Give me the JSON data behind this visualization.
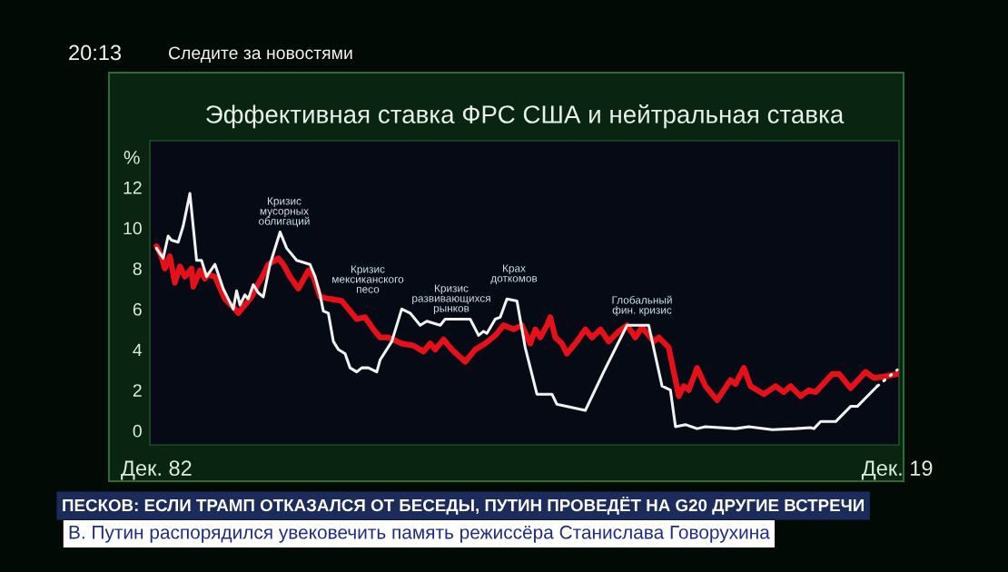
{
  "chart_data": {
    "type": "line",
    "title": "Эффективная ставка ФРС США и нейтральная ставка",
    "ylabel": "%",
    "xlim": [
      "1982-08",
      "2020-01"
    ],
    "xticks": [
      {
        "value": "1982-12",
        "label": "Дек. 82"
      },
      {
        "value": "2019-12",
        "label": "Дек. 19"
      }
    ],
    "ylim": [
      -0.7,
      14.3
    ],
    "yticks": [
      0,
      2,
      4,
      6,
      8,
      10,
      12
    ],
    "series": [
      {
        "color": "#e5101a",
        "x": [
          "1982-12",
          "1983-03",
          "1983-05",
          "1983-08",
          "1983-11",
          "1984-02",
          "1984-05",
          "1984-09",
          "1984-10",
          "1985-02",
          "1985-05",
          "1985-07",
          "1985-11",
          "1986-05",
          "1986-10",
          "1987-01",
          "1987-05",
          "1987-09",
          "1987-12",
          "1988-04",
          "1988-07",
          "1989-01",
          "1989-04",
          "1989-08",
          "1990-01",
          "1990-07",
          "1990-10",
          "1991-02",
          "1991-08",
          "1992-03",
          "1992-08",
          "1992-12",
          "1993-05",
          "1993-10",
          "1994-02",
          "1994-07",
          "1995-03",
          "1995-10",
          "1996-04",
          "1996-08",
          "1996-11",
          "1997-04",
          "1997-09",
          "1998-05",
          "1998-11",
          "1999-05",
          "1999-11",
          "2000-04",
          "2000-10",
          "2001-03",
          "2001-08",
          "2001-11",
          "2002-02",
          "2002-06",
          "2002-08",
          "2002-11",
          "2003-03",
          "2003-06",
          "2003-12",
          "2004-05",
          "2004-09",
          "2005-02",
          "2005-07",
          "2006-01",
          "2006-06",
          "2006-11",
          "2007-03",
          "2007-10",
          "2008-01",
          "2008-07",
          "2009-01",
          "2009-04",
          "2009-07",
          "2009-12",
          "2010-05",
          "2010-12",
          "2011-08",
          "2011-11",
          "2012-04",
          "2012-08",
          "2013-04",
          "2013-11",
          "2014-04",
          "2014-08",
          "2015-02",
          "2015-07",
          "2015-11",
          "2016-09",
          "2017-01",
          "2017-08",
          "2018-05",
          "2018-10",
          "2019-06",
          "2019-12"
        ],
        "values": [
          9.1,
          8.6,
          8.0,
          8.6,
          7.3,
          8.1,
          7.6,
          8.0,
          7.1,
          7.9,
          7.5,
          7.7,
          7.6,
          6.5,
          6.1,
          5.8,
          6.2,
          6.6,
          7.1,
          7.7,
          8.2,
          8.5,
          8.2,
          7.6,
          7.0,
          7.9,
          7.6,
          6.6,
          6.5,
          6.4,
          5.9,
          5.5,
          5.6,
          5.0,
          4.6,
          4.6,
          4.3,
          4.2,
          3.9,
          4.3,
          4.0,
          4.5,
          4.0,
          3.4,
          4.0,
          4.3,
          4.7,
          5.2,
          5.0,
          5.2,
          4.3,
          5.0,
          4.6,
          5.2,
          5.6,
          4.6,
          4.3,
          3.8,
          4.4,
          5.0,
          4.6,
          5.0,
          4.4,
          4.9,
          5.2,
          4.6,
          5.1,
          4.4,
          4.6,
          4.1,
          1.7,
          2.2,
          2.0,
          3.1,
          2.2,
          1.5,
          2.5,
          2.3,
          3.1,
          2.2,
          1.8,
          2.2,
          1.9,
          2.2,
          1.7,
          2.0,
          1.9,
          2.8,
          2.8,
          2.1,
          2.9,
          2.6,
          2.7,
          2.8
        ]
      },
      {
        "color": "#f2f2f2",
        "x": [
          "1982-12",
          "1983-04",
          "1983-07",
          "1983-09",
          "1984-01",
          "1984-04",
          "1984-08",
          "1984-12",
          "1985-03",
          "1985-06",
          "1985-11",
          "1986-04",
          "1986-10",
          "1986-12",
          "1987-02",
          "1987-05",
          "1987-07",
          "1987-10",
          "1988-01",
          "1988-04",
          "1988-08",
          "1989-02",
          "1989-06",
          "1989-12",
          "1990-08",
          "1990-11",
          "1991-02",
          "1991-04",
          "1991-07",
          "1991-10",
          "1992-01",
          "1992-05",
          "1992-08",
          "1992-12",
          "1993-03",
          "1993-07",
          "1993-12",
          "1994-02",
          "1994-09",
          "1995-03",
          "1995-08",
          "1996-02",
          "1996-06",
          "1997-02",
          "1997-05",
          "1998-08",
          "1999-01",
          "1999-04",
          "1999-06",
          "1999-11",
          "2000-02",
          "2000-06",
          "2000-12",
          "2001-05",
          "2001-12",
          "2002-09",
          "2002-12",
          "2004-05",
          "2005-04",
          "2006-06",
          "2007-07",
          "2008-03",
          "2008-08",
          "2008-11",
          "2009-05",
          "2009-12",
          "2010-05",
          "2011-11",
          "2012-07",
          "2013-09",
          "2014-11",
          "2015-08",
          "2015-10",
          "2016-02",
          "2016-11",
          "2017-08",
          "2017-12",
          "2018-12"
        ],
        "values": [
          9.0,
          8.5,
          9.6,
          9.4,
          9.3,
          10.1,
          11.7,
          8.4,
          8.4,
          7.6,
          8.2,
          7.0,
          6.0,
          6.9,
          6.2,
          6.7,
          6.5,
          7.2,
          6.8,
          6.6,
          8.2,
          9.8,
          9.0,
          8.4,
          8.2,
          7.6,
          6.7,
          5.9,
          5.8,
          4.4,
          4.0,
          3.8,
          3.1,
          2.9,
          3.1,
          3.1,
          2.9,
          3.5,
          4.4,
          6.0,
          5.8,
          5.2,
          5.4,
          5.2,
          5.5,
          5.5,
          4.7,
          4.9,
          4.8,
          5.5,
          5.6,
          6.5,
          6.4,
          4.1,
          1.8,
          1.8,
          1.3,
          1.0,
          2.9,
          5.2,
          5.2,
          2.2,
          2.0,
          0.2,
          0.3,
          0.1,
          0.2,
          0.1,
          0.2,
          0.05,
          0.1,
          0.15,
          0.1,
          0.45,
          0.45,
          1.2,
          1.2,
          2.2
        ]
      },
      {
        "color": "#f2f2f2",
        "line_style": "dotted",
        "x": [
          "2018-12",
          "2019-12"
        ],
        "values": [
          2.2,
          3.0
        ]
      }
    ],
    "annotations": [
      "Кризис\nмусорных\nоблигаций",
      "Кризис\nмексиканского\nпесо",
      "Кризис\nразвивающихся\nрынков",
      "Крах\nдоткомов",
      "Глобальный\nфин. кризис",
      "20:13",
      "Следите за новостями",
      "ПЕСКОВ: ЕСЛИ ТРАМП ОТКАЗАЛСЯ ОТ БЕСЕДЫ, ПУТИН ПРОВЕДЁТ НА G20 ДРУГИЕ ВСТРЕЧИ",
      "В. Путин распорядился увековечить память режиссёра Станислава Говорухина"
    ]
  }
}
